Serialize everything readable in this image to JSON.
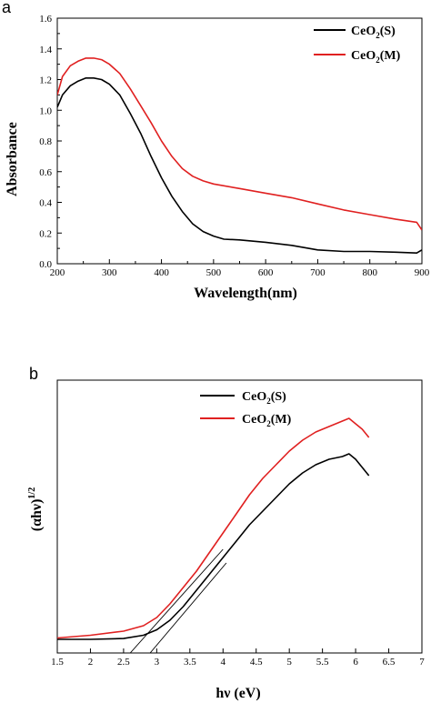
{
  "chart_data": [
    {
      "panel": "a",
      "type": "line",
      "xlabel": "Wavelength(nm)",
      "ylabel": "Absorbance",
      "xlim": [
        200,
        900
      ],
      "ylim": [
        0.0,
        1.6
      ],
      "xticks": [
        200,
        300,
        400,
        500,
        600,
        700,
        800,
        900
      ],
      "yticks": [
        0.0,
        0.2,
        0.4,
        0.6,
        0.8,
        1.0,
        1.2,
        1.4,
        1.6
      ],
      "legend": "top-right",
      "series": [
        {
          "name": "CeO2(S)",
          "name_base": "CeO",
          "name_sub": "2",
          "name_tail": "(S)",
          "color": "#000000",
          "x": [
            200,
            210,
            225,
            240,
            255,
            270,
            285,
            300,
            320,
            340,
            360,
            380,
            400,
            420,
            440,
            460,
            480,
            500,
            520,
            550,
            600,
            650,
            700,
            750,
            800,
            850,
            890,
            900
          ],
          "y": [
            1.02,
            1.1,
            1.16,
            1.19,
            1.21,
            1.21,
            1.2,
            1.17,
            1.1,
            0.98,
            0.85,
            0.7,
            0.56,
            0.44,
            0.34,
            0.26,
            0.21,
            0.18,
            0.16,
            0.155,
            0.14,
            0.12,
            0.09,
            0.08,
            0.08,
            0.075,
            0.07,
            0.09
          ]
        },
        {
          "name": "CeO2(M)",
          "name_base": "CeO",
          "name_sub": "2",
          "name_tail": "(M)",
          "color": "#e02020",
          "x": [
            200,
            210,
            225,
            240,
            255,
            270,
            285,
            300,
            320,
            340,
            360,
            380,
            400,
            420,
            440,
            460,
            480,
            500,
            550,
            600,
            650,
            700,
            750,
            800,
            850,
            890,
            900
          ],
          "y": [
            1.1,
            1.22,
            1.29,
            1.32,
            1.34,
            1.34,
            1.33,
            1.3,
            1.24,
            1.14,
            1.03,
            0.92,
            0.8,
            0.7,
            0.62,
            0.57,
            0.54,
            0.52,
            0.49,
            0.46,
            0.43,
            0.39,
            0.35,
            0.32,
            0.29,
            0.27,
            0.22
          ]
        }
      ]
    },
    {
      "panel": "b",
      "type": "line",
      "xlabel": "hν (eV)",
      "ylabel": "(αhν)",
      "ylabel_sup": "1/2",
      "xlim": [
        1.5,
        7.0
      ],
      "ylim": [
        0,
        100
      ],
      "xticks": [
        1.5,
        2.0,
        2.5,
        3.0,
        3.5,
        4.0,
        4.5,
        5.0,
        5.5,
        6.0,
        6.5,
        7.0
      ],
      "yticks": [],
      "legend": "top-center",
      "series": [
        {
          "name": "CeO2(S)",
          "name_base": "CeO",
          "name_sub": "2",
          "name_tail": "(S)",
          "color": "#000000",
          "x": [
            1.5,
            2.0,
            2.5,
            2.8,
            3.0,
            3.2,
            3.4,
            3.6,
            3.8,
            4.0,
            4.2,
            4.4,
            4.6,
            4.8,
            5.0,
            5.2,
            5.4,
            5.6,
            5.8,
            5.9,
            6.0,
            6.1,
            6.2
          ],
          "y": [
            5.0,
            5.0,
            5.3,
            6.5,
            8.5,
            12,
            17,
            23,
            29,
            35,
            41,
            47,
            52,
            57,
            62,
            66,
            69,
            71,
            72,
            73,
            71,
            68,
            65
          ]
        },
        {
          "name": "CeO2(M)",
          "name_base": "CeO",
          "name_sub": "2",
          "name_tail": "(M)",
          "color": "#e02020",
          "x": [
            1.5,
            2.0,
            2.5,
            2.8,
            3.0,
            3.2,
            3.4,
            3.6,
            3.8,
            4.0,
            4.2,
            4.4,
            4.6,
            4.8,
            5.0,
            5.2,
            5.4,
            5.6,
            5.8,
            5.9,
            6.0,
            6.1,
            6.2
          ],
          "y": [
            5.5,
            6.5,
            8.0,
            10,
            13,
            18,
            24,
            30,
            37,
            44,
            51,
            58,
            64,
            69,
            74,
            78,
            81,
            83,
            85,
            86,
            84,
            82,
            79
          ]
        }
      ],
      "tangents": [
        {
          "x": [
            2.6,
            4.0
          ],
          "y": [
            0,
            38
          ],
          "color": "#000000"
        },
        {
          "x": [
            2.9,
            4.05
          ],
          "y": [
            0,
            33
          ],
          "color": "#000000"
        }
      ]
    }
  ],
  "labels": {
    "panel_a": "a",
    "panel_b": "b"
  }
}
